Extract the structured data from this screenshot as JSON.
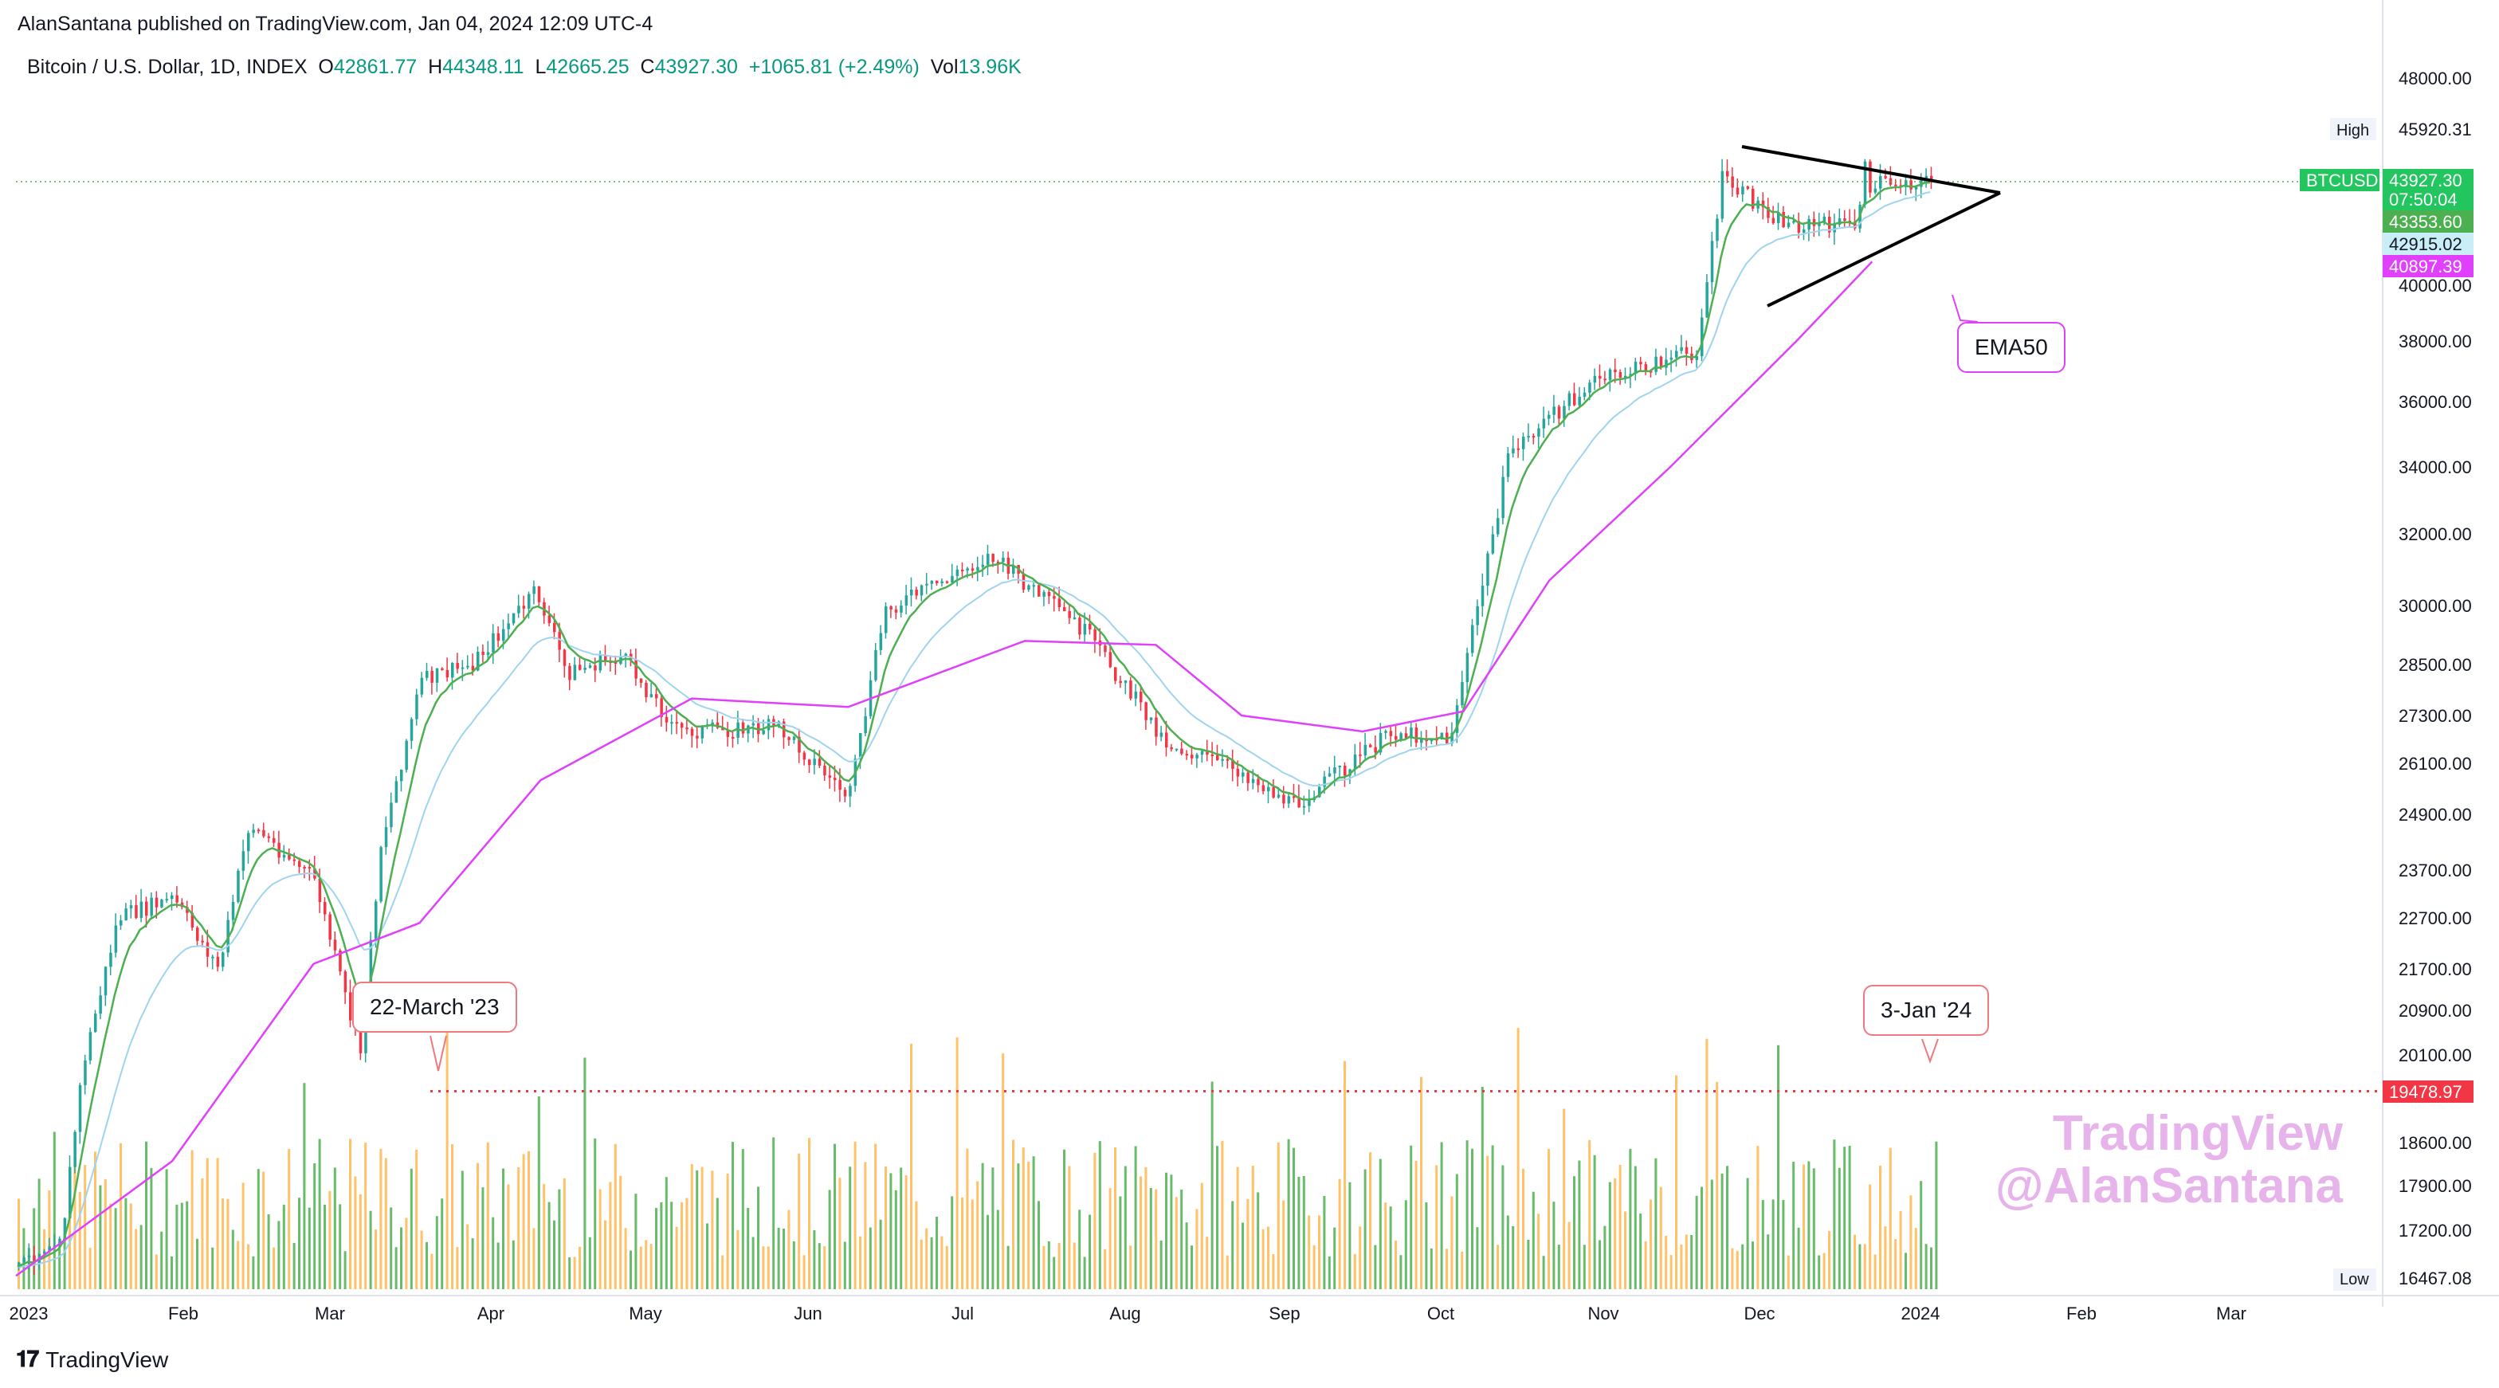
{
  "header": {
    "published_line": "AlanSantana published on TradingView.com, Jan 04, 2024 12:09 UTC-4"
  },
  "ohlc": {
    "symbol": "Bitcoin / U.S. Dollar, 1D, INDEX",
    "o_label": "O",
    "o_value": "42861.77",
    "h_label": "H",
    "h_value": "44348.11",
    "l_label": "L",
    "l_value": "42665.25",
    "c_label": "C",
    "c_value": "43927.30",
    "change": "+1065.81 (+2.49%)",
    "vol_label": "Vol",
    "vol_value": "13.96K"
  },
  "price_axis": {
    "ticks": [
      "48000.00",
      "45920.31",
      "40000.00",
      "38000.00",
      "36000.00",
      "34000.00",
      "32000.00",
      "30000.00",
      "28500.00",
      "27300.00",
      "26100.00",
      "24900.00",
      "23700.00",
      "22700.00",
      "21700.00",
      "20900.00",
      "20100.00",
      "18600.00",
      "17900.00",
      "17200.00",
      "16467.08"
    ],
    "high_label": "High",
    "high_value": "45920.31",
    "low_label": "Low",
    "low_value": "16467.08",
    "badge_symbol": "BTCUSD",
    "badge_price": "43927.30",
    "badge_countdown": "07:50:04",
    "badge_ema_fast": "43353.60",
    "badge_ema_mid": "42915.02",
    "badge_ema50": "40897.39",
    "badge_level": "19478.97"
  },
  "time_axis": [
    "2023",
    "Feb",
    "Mar",
    "Apr",
    "May",
    "Jun",
    "Jul",
    "Aug",
    "Sep",
    "Oct",
    "Nov",
    "Dec",
    "2024",
    "Feb",
    "Mar"
  ],
  "annotations": {
    "callout_march": "22-March '23",
    "callout_jan": "3-Jan '24",
    "callout_ema": "EMA50"
  },
  "watermark": {
    "line1": "TradingView",
    "line2": "@AlanSantana"
  },
  "footer": {
    "brand": "TradingView"
  },
  "colors": {
    "up": "#089981",
    "down": "#f23645",
    "candle_up": "#26a69a",
    "ema_fast": "#4caf50",
    "ema_mid": "#9fd4ef",
    "ema50": "#e040fb",
    "level_line": "#f23645",
    "vol_up": "#4caf50",
    "vol_down": "#ffb74d"
  },
  "chart_data": {
    "type": "candlestick",
    "title": "Bitcoin / U.S. Dollar, 1D, INDEX",
    "y_range": [
      16467.08,
      48000
    ],
    "x_range": [
      "2023-01-01",
      "2024-03-31"
    ],
    "series": [
      {
        "name": "BTCUSD",
        "type": "line",
        "x": [
          "2023-01-01",
          "2023-01-10",
          "2023-01-14",
          "2023-01-21",
          "2023-02-01",
          "2023-02-10",
          "2023-02-16",
          "2023-03-01",
          "2023-03-10",
          "2023-03-14",
          "2023-03-22",
          "2023-04-01",
          "2023-04-14",
          "2023-04-20",
          "2023-05-01",
          "2023-05-12",
          "2023-06-01",
          "2023-06-15",
          "2023-06-22",
          "2023-07-01",
          "2023-07-13",
          "2023-08-01",
          "2023-08-17",
          "2023-09-01",
          "2023-09-11",
          "2023-10-01",
          "2023-10-12",
          "2023-10-24",
          "2023-11-09",
          "2023-11-30",
          "2023-12-05",
          "2023-12-18",
          "2024-01-01",
          "2024-01-02",
          "2024-01-03",
          "2024-01-04"
        ],
        "values": [
          16600,
          17200,
          19900,
          22700,
          23100,
          21700,
          24700,
          23500,
          20100,
          24200,
          28100,
          28500,
          30400,
          28300,
          28700,
          26900,
          27000,
          25300,
          29900,
          30500,
          31400,
          29300,
          26600,
          25900,
          25100,
          26900,
          26700,
          34500,
          36600,
          37700,
          44000,
          42300,
          42300,
          45300,
          42800,
          43927
        ]
      },
      {
        "name": "EMA50",
        "type": "line",
        "x": [
          "2023-01-01",
          "2023-02-01",
          "2023-03-01",
          "2023-03-22",
          "2023-04-15",
          "2023-05-15",
          "2023-06-15",
          "2023-07-20",
          "2023-08-15",
          "2023-09-01",
          "2023-09-25",
          "2023-10-15",
          "2023-11-01",
          "2023-11-25",
          "2023-12-20",
          "2024-01-04"
        ],
        "values": [
          16500,
          18300,
          21800,
          22600,
          25700,
          27700,
          27500,
          29100,
          29000,
          27300,
          26900,
          27400,
          30700,
          34000,
          38000,
          40897
        ]
      },
      {
        "name": "Volume",
        "type": "bar",
        "values_note": "relative daily volume bars along bottom"
      }
    ],
    "levels": [
      {
        "value": 19478.97,
        "style": "dotted",
        "label": "19478.97"
      },
      {
        "value": 43927.3,
        "style": "dotted",
        "label": "43927.30"
      }
    ],
    "drawings": [
      {
        "type": "symmetrical-triangle",
        "x": [
          "2023-12-01",
          "2024-01-27"
        ]
      }
    ]
  }
}
